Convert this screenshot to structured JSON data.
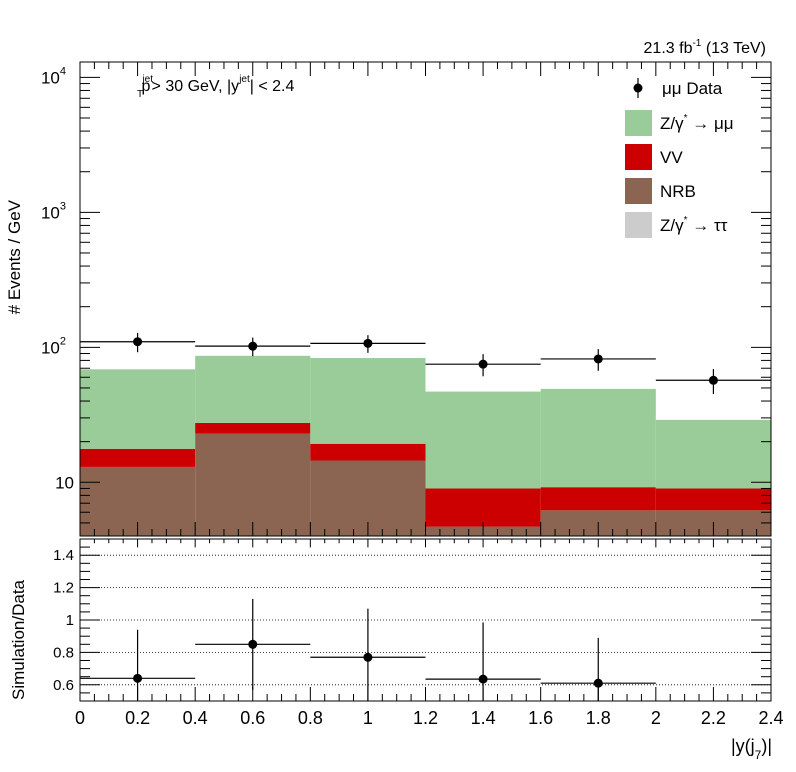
{
  "chart_data": {
    "type": "bar",
    "lumi": {
      "value": "21.3 fb",
      "exp": "-1",
      "energy": " (13 TeV)"
    },
    "cut_text": {
      "p": "p",
      "p_sup": "jet",
      "p_sub": "T",
      "mid": " > 30 GeV,  |y",
      "y_sup": "jet",
      "tail": "| < 2.4"
    },
    "x_bins": [
      0,
      0.4,
      0.8,
      1.2,
      1.6,
      2.0,
      2.4
    ],
    "xlim": [
      0,
      2.4
    ],
    "x_ticks": [
      0,
      0.2,
      0.4,
      0.6,
      0.8,
      1,
      1.2,
      1.4,
      1.6,
      1.8,
      2,
      2.2,
      2.4
    ],
    "xlabel": {
      "pre": "|y(j",
      "sub": "7",
      "post": ")|"
    },
    "top": {
      "ylabel": "# Events / GeV",
      "yscale": "log",
      "ylim": [
        4,
        13000
      ],
      "y_ticks": [
        {
          "value": 10,
          "base": "10",
          "exp": ""
        },
        {
          "value": 100,
          "base": "10",
          "exp": "2"
        },
        {
          "value": 1000,
          "base": "10",
          "exp": "3"
        },
        {
          "value": 10000,
          "base": "10",
          "exp": "4"
        }
      ],
      "stack": [
        {
          "name": "NRB",
          "color": "#8b6452",
          "values": [
            13,
            23,
            14.5,
            4.7,
            6.2,
            6.2
          ]
        },
        {
          "name": "VV",
          "color": "#cc0000",
          "values": [
            4.7,
            4.5,
            4.8,
            4.3,
            3.0,
            2.8
          ]
        },
        {
          "name": "Z/γ* → ττ",
          "color": "#cccccc",
          "values": [
            0,
            0,
            0,
            0,
            0,
            0
          ]
        },
        {
          "name": "Z/γ* → μμ",
          "color": "#99cc99",
          "values": [
            51,
            59,
            64,
            38,
            40,
            20
          ]
        }
      ],
      "data": {
        "name": "μμ Data",
        "x": [
          0.2,
          0.6,
          1.0,
          1.4,
          1.8,
          2.2
        ],
        "y": [
          110,
          102,
          107,
          75,
          82,
          57
        ],
        "y_err": [
          18,
          16,
          16,
          14,
          15,
          12
        ]
      },
      "legend": {
        "position": "top-right",
        "entries": [
          {
            "kind": "marker",
            "text": "μμ Data"
          },
          {
            "kind": "box",
            "color": "#99cc99",
            "pre": "Z/γ",
            "sup": "*",
            "post": " → μμ"
          },
          {
            "kind": "box",
            "color": "#cc0000",
            "pre": "VV",
            "sup": "",
            "post": ""
          },
          {
            "kind": "box",
            "color": "#8b6452",
            "pre": "NRB",
            "sup": "",
            "post": ""
          },
          {
            "kind": "box",
            "color": "#cccccc",
            "pre": "Z/γ",
            "sup": "*",
            "post": " → ττ"
          }
        ]
      }
    },
    "bottom": {
      "ylabel": "Simulation/Data",
      "ylim": [
        0.5,
        1.5
      ],
      "y_ticks": [
        0.6,
        0.8,
        1,
        1.2,
        1.4
      ],
      "grid": true,
      "ratio": {
        "x": [
          0.2,
          0.6,
          1.0,
          1.4,
          1.8
        ],
        "y": [
          0.64,
          0.85,
          0.77,
          0.635,
          0.61
        ],
        "y_err": [
          0.3,
          0.28,
          0.3,
          0.35,
          0.28
        ]
      }
    }
  }
}
